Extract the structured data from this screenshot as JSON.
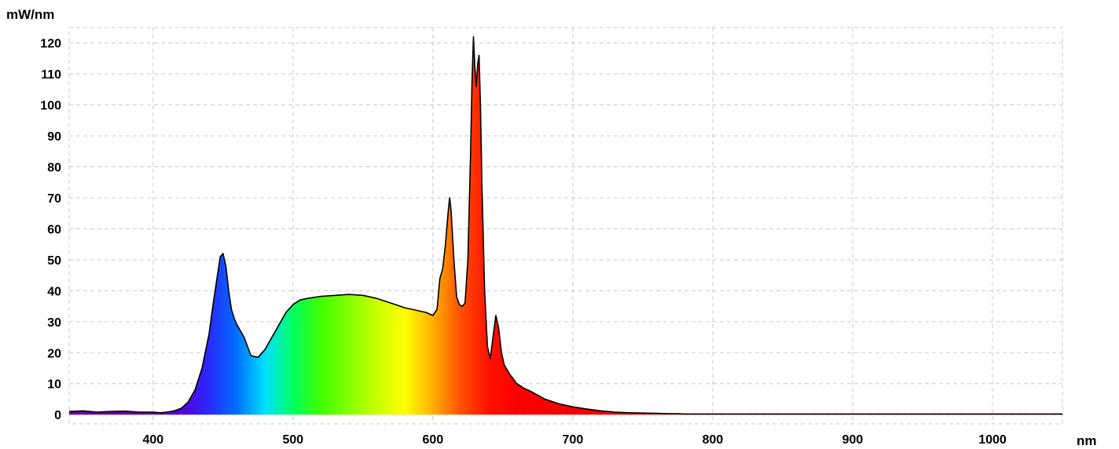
{
  "chart_data": {
    "type": "area",
    "title": "",
    "ylabel": "mW/nm",
    "xlabel": "nm",
    "xlim": [
      340,
      1050
    ],
    "ylim": [
      -3,
      125
    ],
    "grid": true,
    "legend": "none",
    "fill": "visible-spectrum-gradient",
    "outline_color": "#000000",
    "x_ticks": [
      400,
      500,
      600,
      700,
      800,
      900,
      1000
    ],
    "y_ticks": [
      0,
      10,
      20,
      30,
      40,
      50,
      60,
      70,
      80,
      90,
      100,
      110,
      120
    ],
    "series": [
      {
        "x": [
          340,
          350,
          360,
          370,
          380,
          390,
          400,
          405,
          410,
          415,
          420,
          425,
          430,
          435,
          440,
          443,
          446,
          448,
          450,
          452,
          454,
          456,
          458,
          460,
          465,
          470,
          475,
          480,
          485,
          490,
          495,
          500,
          505,
          510,
          520,
          530,
          540,
          550,
          560,
          570,
          580,
          590,
          595,
          600,
          603,
          605,
          607,
          609,
          611,
          612,
          613,
          615,
          617,
          619,
          621,
          623,
          625,
          627,
          628,
          629,
          630,
          631,
          632,
          633,
          634,
          635,
          637,
          639,
          641,
          643,
          645,
          647,
          649,
          651,
          655,
          660,
          665,
          670,
          680,
          690,
          700,
          710,
          720,
          730,
          740,
          750,
          760,
          770,
          775,
          780,
          800,
          900,
          1000,
          1050
        ],
        "y": [
          1,
          1.2,
          0.8,
          1,
          1.1,
          0.8,
          0.8,
          0.6,
          0.8,
          1.2,
          2,
          4,
          8,
          15,
          26,
          36,
          45,
          51,
          52,
          48,
          40,
          34,
          31,
          29,
          25,
          19,
          18.5,
          21,
          25,
          29,
          33,
          35.5,
          37,
          37.5,
          38.2,
          38.5,
          38.8,
          38.5,
          37.5,
          36,
          34.5,
          33.5,
          33,
          32,
          34,
          44,
          47,
          55,
          66,
          70,
          66,
          50,
          38,
          35.5,
          35,
          36,
          50,
          85,
          108,
          122,
          112,
          106,
          113,
          116,
          100,
          75,
          40,
          22,
          18,
          25,
          32,
          28,
          20,
          16,
          13,
          10,
          8.5,
          7.5,
          5,
          3.5,
          2.5,
          1.8,
          1.2,
          0.8,
          0.6,
          0.5,
          0.4,
          0.3,
          0.3,
          0.2,
          0.2,
          0.2,
          0.2,
          0.2
        ]
      }
    ]
  }
}
